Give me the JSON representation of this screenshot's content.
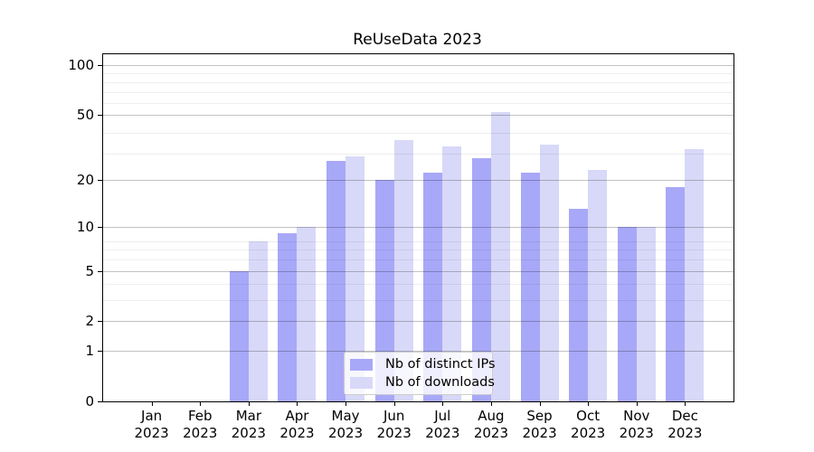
{
  "chart_data": {
    "type": "bar",
    "title": "ReUseData 2023",
    "months": [
      "Jan",
      "Feb",
      "Mar",
      "Apr",
      "May",
      "Jun",
      "Jul",
      "Aug",
      "Sep",
      "Oct",
      "Nov",
      "Dec"
    ],
    "year": "2023",
    "series": [
      {
        "name": "Nb of distinct IPs",
        "color": "#a8a8f8",
        "values": [
          0,
          0,
          5,
          9,
          26,
          20,
          22,
          27,
          22,
          13,
          10,
          18
        ]
      },
      {
        "name": "Nb of downloads",
        "color": "#d8d8f8",
        "values": [
          0,
          0,
          8,
          10,
          28,
          35,
          32,
          52,
          33,
          23,
          10,
          31
        ]
      }
    ],
    "y_ticks": [
      0,
      1,
      2,
      5,
      10,
      20,
      50,
      100
    ],
    "y_minor_gridlines": [
      3,
      4,
      6,
      7,
      8,
      29,
      39,
      59,
      69,
      79,
      89
    ],
    "scale": "log1p",
    "ylim": [
      0,
      116
    ],
    "grid": true,
    "legend_position": "lower center",
    "axis_color": "#000000",
    "major_grid_color": "rgba(0,0,0,0.24)",
    "minor_grid_color": "rgba(0,0,0,0.065)",
    "background_color": "#ffffff"
  }
}
